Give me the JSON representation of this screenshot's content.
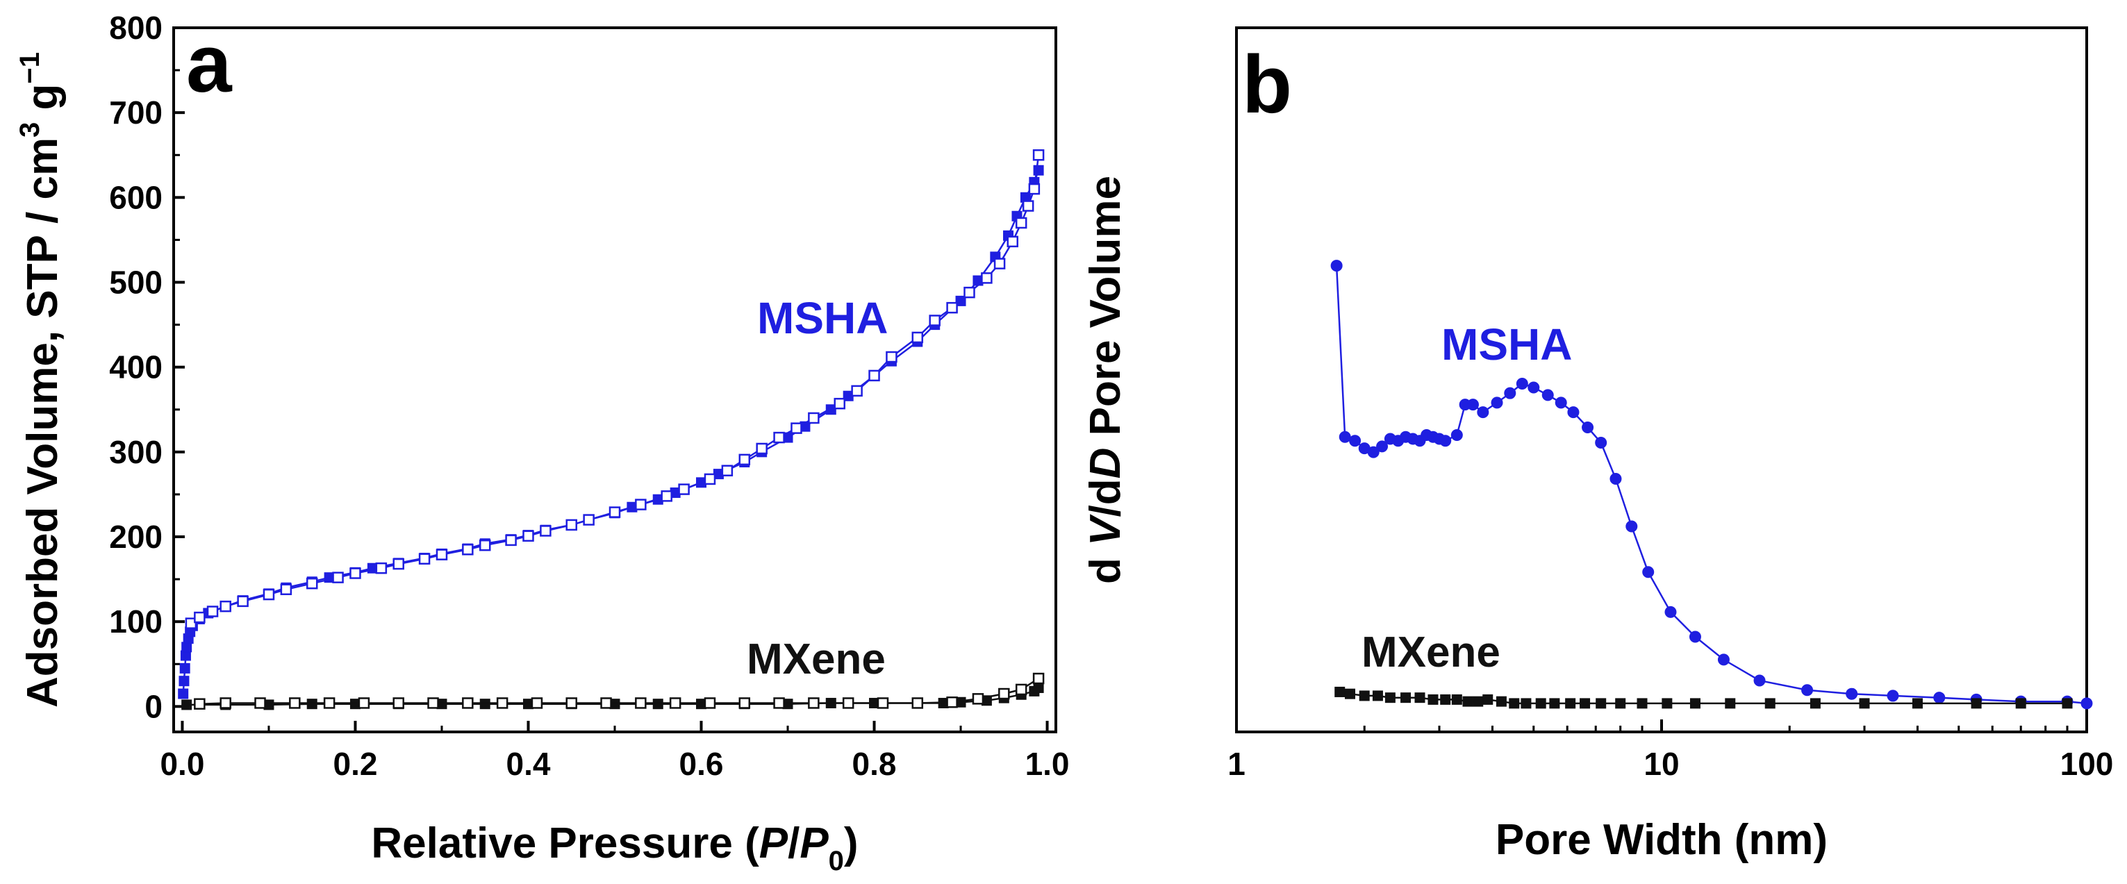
{
  "colors": {
    "msha": "#1f1fe0",
    "mxene": "#111111",
    "axis": "#000000"
  },
  "chart_data": [
    {
      "panel_label": "a",
      "type": "scatter",
      "title": "",
      "xlabel_main": "Relative Pressure (",
      "xlabel_p": "P",
      "xlabel_slash": "/",
      "xlabel_p0": "P",
      "xlabel_sub": "0",
      "xlabel_close": ")",
      "ylabel_main": "Adsorbed Volume, STP / cm",
      "ylabel_sup": "3",
      "ylabel_g": " g",
      "ylabel_sup2": "−1",
      "xlim": [
        -0.01,
        1.01
      ],
      "ylim": [
        -30,
        800
      ],
      "x_ticks": [
        "0.0",
        "0.2",
        "0.4",
        "0.6",
        "0.8",
        "1.0"
      ],
      "y_ticks": [
        "0",
        "100",
        "200",
        "300",
        "400",
        "500",
        "600",
        "700",
        "800"
      ],
      "annotations": [
        "MSHA",
        "MXene"
      ],
      "series": [
        {
          "name": "MSHA adsorption",
          "color": "#1f1fe0",
          "marker": "filled-square",
          "x": [
            0.001,
            0.002,
            0.003,
            0.004,
            0.005,
            0.007,
            0.009,
            0.012,
            0.02,
            0.03,
            0.05,
            0.07,
            0.1,
            0.12,
            0.15,
            0.17,
            0.2,
            0.22,
            0.25,
            0.28,
            0.3,
            0.33,
            0.35,
            0.38,
            0.4,
            0.42,
            0.45,
            0.47,
            0.5,
            0.52,
            0.55,
            0.57,
            0.6,
            0.62,
            0.65,
            0.67,
            0.7,
            0.72,
            0.75,
            0.77,
            0.8,
            0.82,
            0.85,
            0.87,
            0.9,
            0.92,
            0.94,
            0.955,
            0.965,
            0.975,
            0.985,
            0.99
          ],
          "y": [
            15,
            30,
            45,
            60,
            70,
            80,
            88,
            95,
            103,
            110,
            118,
            125,
            133,
            140,
            147,
            152,
            158,
            163,
            169,
            175,
            180,
            186,
            192,
            197,
            202,
            208,
            214,
            220,
            228,
            235,
            244,
            252,
            264,
            274,
            288,
            300,
            317,
            330,
            350,
            366,
            390,
            407,
            430,
            450,
            478,
            502,
            530,
            555,
            578,
            600,
            618,
            632
          ]
        },
        {
          "name": "MSHA desorption",
          "color": "#1f1fe0",
          "marker": "open-square",
          "x": [
            0.01,
            0.02,
            0.035,
            0.05,
            0.07,
            0.1,
            0.12,
            0.15,
            0.18,
            0.2,
            0.23,
            0.25,
            0.28,
            0.3,
            0.33,
            0.35,
            0.38,
            0.4,
            0.42,
            0.45,
            0.47,
            0.5,
            0.53,
            0.56,
            0.58,
            0.61,
            0.63,
            0.65,
            0.67,
            0.69,
            0.71,
            0.73,
            0.76,
            0.78,
            0.8,
            0.82,
            0.85,
            0.87,
            0.89,
            0.91,
            0.93,
            0.945,
            0.96,
            0.97,
            0.978,
            0.985,
            0.99
          ],
          "y": [
            98,
            105,
            112,
            118,
            124,
            132,
            138,
            145,
            152,
            157,
            163,
            168,
            174,
            179,
            185,
            190,
            196,
            201,
            207,
            214,
            220,
            229,
            238,
            248,
            256,
            268,
            278,
            291,
            304,
            317,
            328,
            340,
            357,
            372,
            390,
            412,
            435,
            455,
            470,
            488,
            505,
            522,
            548,
            570,
            590,
            610,
            650
          ]
        },
        {
          "name": "MXene adsorption",
          "color": "#111111",
          "marker": "filled-square",
          "x": [
            0.005,
            0.05,
            0.1,
            0.15,
            0.2,
            0.25,
            0.3,
            0.35,
            0.4,
            0.45,
            0.5,
            0.55,
            0.6,
            0.65,
            0.7,
            0.75,
            0.8,
            0.85,
            0.88,
            0.9,
            0.93,
            0.95,
            0.97,
            0.985,
            0.99
          ],
          "y": [
            2,
            2,
            2,
            3,
            3,
            3,
            3,
            3,
            3,
            3,
            3,
            3,
            3,
            3,
            3,
            4,
            4,
            4,
            4,
            5,
            7,
            10,
            14,
            18,
            22
          ]
        },
        {
          "name": "MXene desorption",
          "color": "#111111",
          "marker": "open-square",
          "x": [
            0.02,
            0.05,
            0.09,
            0.13,
            0.17,
            0.21,
            0.25,
            0.29,
            0.33,
            0.37,
            0.41,
            0.45,
            0.49,
            0.53,
            0.57,
            0.61,
            0.65,
            0.69,
            0.73,
            0.77,
            0.81,
            0.85,
            0.89,
            0.92,
            0.95,
            0.97,
            0.99
          ],
          "y": [
            3,
            4,
            4,
            4,
            4,
            4,
            4,
            4,
            4,
            4,
            4,
            4,
            4,
            4,
            4,
            4,
            4,
            4,
            4,
            4,
            4,
            4,
            5,
            9,
            15,
            20,
            33
          ]
        }
      ]
    },
    {
      "panel_label": "b",
      "type": "line",
      "title": "",
      "xscale": "log",
      "xlabel": "Pore Width (nm)",
      "ylabel_d1": "d ",
      "ylabel_v": "V",
      "ylabel_slash": "/d",
      "ylabel_d2": "D",
      "ylabel_rest": " Pore Volume",
      "xlim": [
        1,
        100
      ],
      "ylim": [
        -0.1,
        3.6
      ],
      "x_ticks": [
        1,
        10,
        100
      ],
      "x_tick_labels": [
        "1",
        "10",
        "100"
      ],
      "y_ticks": [],
      "annotations": [
        "MSHA",
        "MXene"
      ],
      "series": [
        {
          "name": "MSHA",
          "color": "#1f1fe0",
          "marker": "filled-circle",
          "x": [
            1.72,
            1.8,
            1.9,
            2.0,
            2.1,
            2.2,
            2.3,
            2.4,
            2.5,
            2.6,
            2.7,
            2.8,
            2.9,
            3.0,
            3.1,
            3.3,
            3.45,
            3.6,
            3.8,
            4.1,
            4.4,
            4.7,
            5.0,
            5.4,
            5.8,
            6.2,
            6.7,
            7.2,
            7.8,
            8.5,
            9.3,
            10.5,
            12.0,
            14.0,
            17.0,
            22.0,
            28.0,
            35.0,
            45.0,
            55.0,
            70.0,
            90.0,
            100.0
          ],
          "y": [
            2.35,
            1.45,
            1.43,
            1.39,
            1.37,
            1.4,
            1.44,
            1.43,
            1.45,
            1.44,
            1.43,
            1.46,
            1.45,
            1.44,
            1.43,
            1.46,
            1.62,
            1.62,
            1.58,
            1.63,
            1.68,
            1.73,
            1.71,
            1.67,
            1.63,
            1.58,
            1.5,
            1.42,
            1.23,
            0.98,
            0.74,
            0.53,
            0.4,
            0.28,
            0.17,
            0.12,
            0.1,
            0.09,
            0.08,
            0.07,
            0.06,
            0.06,
            0.05
          ]
        },
        {
          "name": "MXene",
          "color": "#111111",
          "marker": "filled-square",
          "x": [
            1.75,
            1.85,
            2.0,
            2.15,
            2.3,
            2.5,
            2.7,
            2.9,
            3.1,
            3.3,
            3.5,
            3.7,
            3.9,
            4.2,
            4.5,
            4.8,
            5.2,
            5.6,
            6.1,
            6.6,
            7.2,
            8.0,
            9.0,
            10.3,
            12.0,
            14.5,
            18.0,
            23.0,
            30.0,
            40.0,
            55.0,
            70.0,
            90.0
          ],
          "y": [
            0.11,
            0.1,
            0.09,
            0.09,
            0.08,
            0.08,
            0.08,
            0.07,
            0.07,
            0.07,
            0.06,
            0.06,
            0.07,
            0.06,
            0.05,
            0.05,
            0.05,
            0.05,
            0.05,
            0.05,
            0.05,
            0.05,
            0.05,
            0.05,
            0.05,
            0.05,
            0.05,
            0.05,
            0.05,
            0.05,
            0.05,
            0.05,
            0.05
          ]
        }
      ]
    }
  ]
}
